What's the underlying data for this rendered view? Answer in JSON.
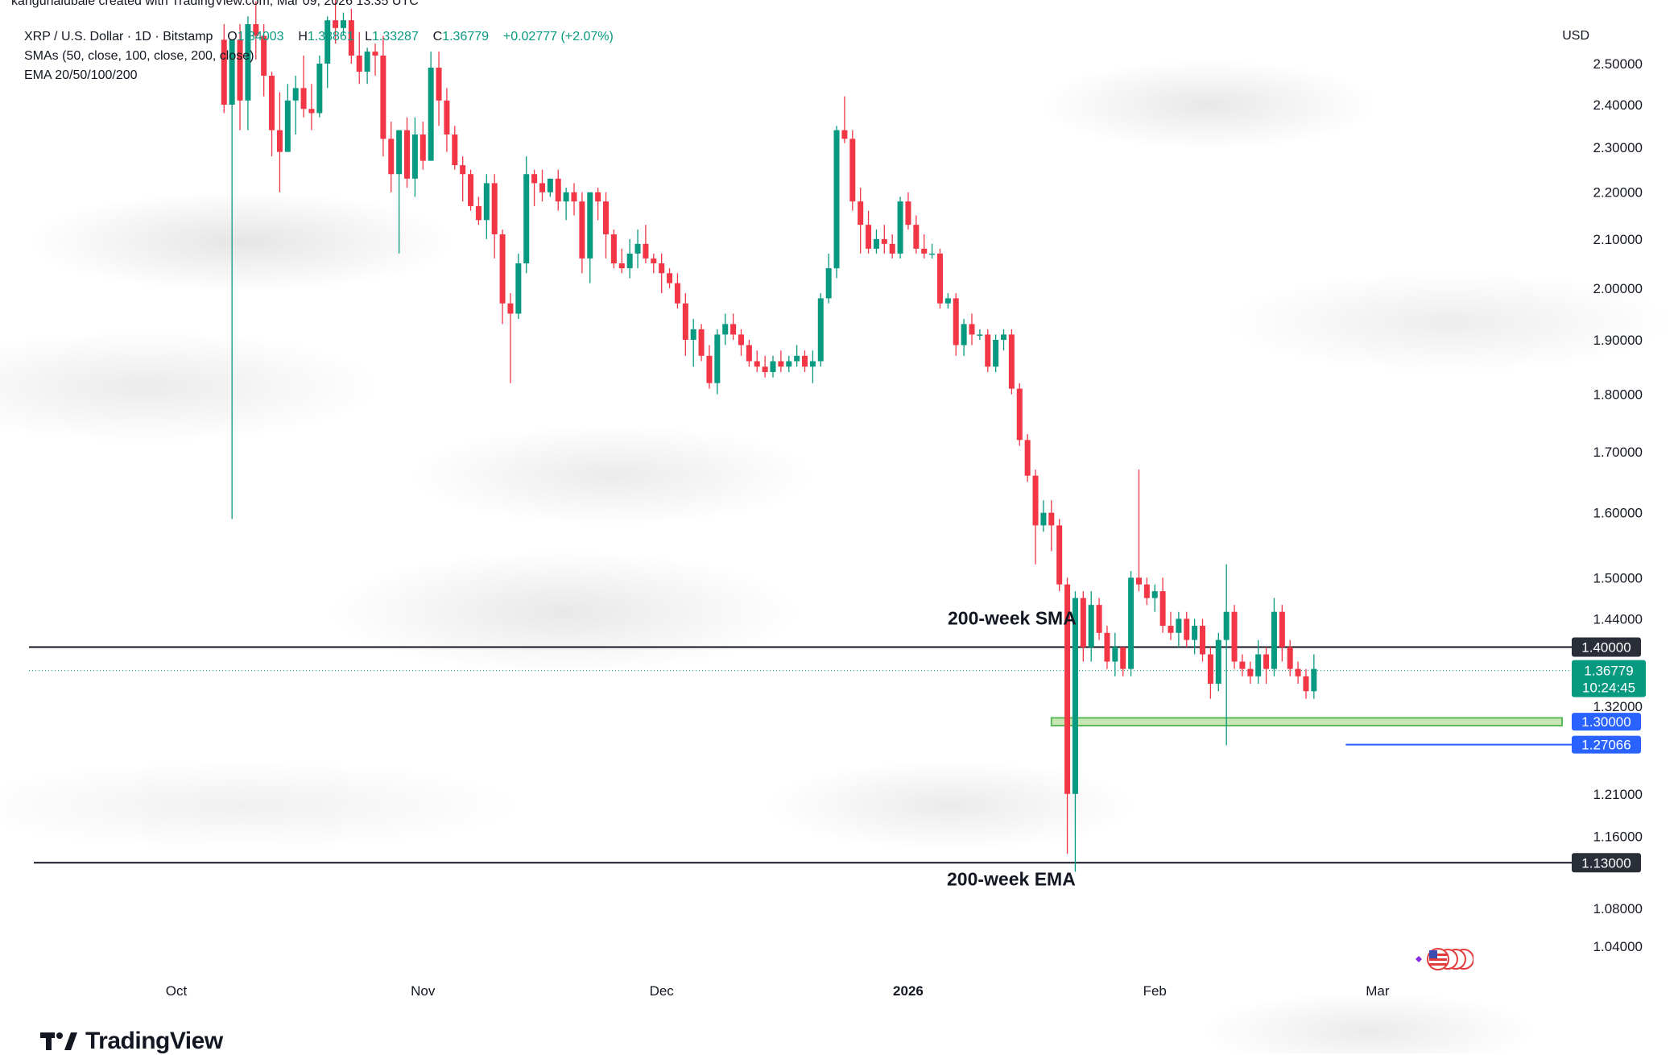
{
  "attribution": "kanguhalubale created with TradingView.com, Mar 09, 2026 13:35 UTC",
  "legend": {
    "symbol": "XRP / U.S. Dollar · 1D · Bitstamp",
    "o_label": "O",
    "o_value": "1.34003",
    "h_label": "H",
    "h_value": "1.38861",
    "l_label": "L",
    "l_value": "1.33287",
    "c_label": "C",
    "c_value": "1.36779",
    "change": "+0.02777 (+2.07%)",
    "sma": "SMAs (50, close, 100, close, 200, close)",
    "ema": "EMA 20/50/100/200"
  },
  "currency": "USD",
  "logo_text": "TradingView",
  "colors": {
    "up": "#089981",
    "down": "#f23645",
    "level_line": "#131722",
    "blue_tag": "#2962ff",
    "zone_fill": "#c8e6b4",
    "zone_border": "#5cb85c",
    "dark_tag": "#2a2e39",
    "green_tag": "#089981"
  },
  "annotations": {
    "sma_text": "200-week SMA",
    "ema_text": "200-week EMA"
  },
  "chart_data": {
    "type": "candlestick",
    "title": "XRP / U.S. Dollar · 1D · Bitstamp",
    "ylabel": "USD",
    "y_scale": "log",
    "ylim": [
      1.02,
      2.55
    ],
    "y_ticks": [
      "2.50000",
      "2.40000",
      "2.30000",
      "2.20000",
      "2.10000",
      "2.00000",
      "1.90000",
      "1.80000",
      "1.70000",
      "1.60000",
      "1.50000",
      "1.44000",
      "1.32000",
      "1.21000",
      "1.16000",
      "1.08000",
      "1.04000"
    ],
    "x_labels": [
      {
        "label": "Oct",
        "date": "2025-10-01"
      },
      {
        "label": "Nov",
        "date": "2025-11-01"
      },
      {
        "label": "Dec",
        "date": "2025-12-01"
      },
      {
        "label": "2026",
        "date": "2026-01-01"
      },
      {
        "label": "Feb",
        "date": "2026-02-01"
      },
      {
        "label": "Mar",
        "date": "2026-03-01"
      }
    ],
    "x_range": [
      "2025-09-14",
      "2026-03-28"
    ],
    "horizontal_levels": [
      {
        "name": "200-week SMA",
        "value": 1.4,
        "tag": "1.40000"
      },
      {
        "name": "200-week EMA",
        "value": 1.13,
        "tag": "1.13000"
      }
    ],
    "support_zone": {
      "from": 1.295,
      "to": 1.305,
      "start_date": "2026-01-19",
      "tag": "1.30000"
    },
    "low_marker": {
      "value": 1.27066,
      "tag": "1.27066",
      "start_date": "2026-02-25"
    },
    "last_price": {
      "value": 1.36779,
      "tag": "1.36779",
      "countdown": "10:24:45"
    },
    "candles_start_date": "2025-10-07",
    "candles": [
      [
        2.56,
        2.6,
        2.38,
        2.4
      ],
      [
        2.4,
        2.56,
        1.59,
        2.56
      ],
      [
        2.56,
        2.6,
        2.34,
        2.41
      ],
      [
        2.41,
        2.62,
        2.34,
        2.6
      ],
      [
        2.6,
        2.66,
        2.51,
        2.57
      ],
      [
        2.57,
        2.6,
        2.42,
        2.47
      ],
      [
        2.47,
        2.48,
        2.28,
        2.34
      ],
      [
        2.34,
        2.43,
        2.2,
        2.29
      ],
      [
        2.29,
        2.45,
        2.29,
        2.41
      ],
      [
        2.41,
        2.47,
        2.33,
        2.44
      ],
      [
        2.44,
        2.52,
        2.37,
        2.39
      ],
      [
        2.39,
        2.45,
        2.34,
        2.38
      ],
      [
        2.38,
        2.52,
        2.37,
        2.5
      ],
      [
        2.5,
        2.62,
        2.44,
        2.61
      ],
      [
        2.61,
        2.68,
        2.55,
        2.59
      ],
      [
        2.59,
        2.63,
        2.57,
        2.61
      ],
      [
        2.61,
        2.64,
        2.5,
        2.52
      ],
      [
        2.52,
        2.58,
        2.45,
        2.48
      ],
      [
        2.48,
        2.54,
        2.45,
        2.53
      ],
      [
        2.53,
        2.55,
        2.47,
        2.52
      ],
      [
        2.52,
        2.57,
        2.28,
        2.32
      ],
      [
        2.32,
        2.36,
        2.2,
        2.24
      ],
      [
        2.24,
        2.34,
        2.07,
        2.34
      ],
      [
        2.34,
        2.37,
        2.21,
        2.23
      ],
      [
        2.23,
        2.37,
        2.19,
        2.33
      ],
      [
        2.33,
        2.36,
        2.25,
        2.27
      ],
      [
        2.27,
        2.53,
        2.27,
        2.49
      ],
      [
        2.49,
        2.53,
        2.35,
        2.41
      ],
      [
        2.41,
        2.44,
        2.29,
        2.33
      ],
      [
        2.33,
        2.35,
        2.25,
        2.26
      ],
      [
        2.26,
        2.28,
        2.18,
        2.24
      ],
      [
        2.24,
        2.25,
        2.16,
        2.17
      ],
      [
        2.17,
        2.19,
        2.13,
        2.14
      ],
      [
        2.14,
        2.24,
        2.1,
        2.22
      ],
      [
        2.22,
        2.24,
        2.06,
        2.11
      ],
      [
        2.11,
        2.12,
        1.93,
        1.97
      ],
      [
        1.97,
        1.99,
        1.82,
        1.95
      ],
      [
        1.95,
        2.07,
        1.94,
        2.05
      ],
      [
        2.05,
        2.28,
        2.03,
        2.24
      ],
      [
        2.24,
        2.25,
        2.17,
        2.22
      ],
      [
        2.22,
        2.25,
        2.18,
        2.2
      ],
      [
        2.2,
        2.23,
        2.19,
        2.23
      ],
      [
        2.23,
        2.25,
        2.16,
        2.18
      ],
      [
        2.18,
        2.21,
        2.14,
        2.2
      ],
      [
        2.2,
        2.22,
        2.15,
        2.18
      ],
      [
        2.18,
        2.2,
        2.03,
        2.06
      ],
      [
        2.06,
        2.2,
        2.01,
        2.2
      ],
      [
        2.2,
        2.21,
        2.14,
        2.18
      ],
      [
        2.18,
        2.2,
        2.06,
        2.11
      ],
      [
        2.11,
        2.12,
        2.04,
        2.05
      ],
      [
        2.05,
        2.08,
        2.03,
        2.04
      ],
      [
        2.04,
        2.1,
        2.02,
        2.07
      ],
      [
        2.07,
        2.12,
        2.04,
        2.09
      ],
      [
        2.09,
        2.13,
        2.05,
        2.06
      ],
      [
        2.06,
        2.07,
        2.03,
        2.05
      ],
      [
        2.05,
        2.07,
        1.99,
        2.03
      ],
      [
        2.03,
        2.04,
        2.0,
        2.01
      ],
      [
        2.01,
        2.03,
        1.96,
        1.97
      ],
      [
        1.97,
        1.99,
        1.87,
        1.9
      ],
      [
        1.9,
        1.94,
        1.85,
        1.92
      ],
      [
        1.92,
        1.93,
        1.86,
        1.87
      ],
      [
        1.87,
        1.89,
        1.81,
        1.82
      ],
      [
        1.82,
        1.92,
        1.8,
        1.91
      ],
      [
        1.91,
        1.95,
        1.89,
        1.93
      ],
      [
        1.93,
        1.95,
        1.9,
        1.91
      ],
      [
        1.91,
        1.92,
        1.87,
        1.89
      ],
      [
        1.89,
        1.9,
        1.85,
        1.86
      ],
      [
        1.86,
        1.88,
        1.84,
        1.85
      ],
      [
        1.85,
        1.87,
        1.83,
        1.84
      ],
      [
        1.84,
        1.87,
        1.83,
        1.86
      ],
      [
        1.86,
        1.88,
        1.84,
        1.85
      ],
      [
        1.85,
        1.87,
        1.84,
        1.86
      ],
      [
        1.86,
        1.89,
        1.85,
        1.87
      ],
      [
        1.87,
        1.88,
        1.84,
        1.85
      ],
      [
        1.85,
        1.88,
        1.82,
        1.86
      ],
      [
        1.86,
        1.99,
        1.85,
        1.98
      ],
      [
        1.98,
        2.07,
        1.97,
        2.04
      ],
      [
        2.04,
        2.35,
        2.02,
        2.34
      ],
      [
        2.34,
        2.42,
        2.31,
        2.32
      ],
      [
        2.32,
        2.34,
        2.16,
        2.18
      ],
      [
        2.18,
        2.21,
        2.07,
        2.13
      ],
      [
        2.13,
        2.16,
        2.07,
        2.08
      ],
      [
        2.08,
        2.12,
        2.07,
        2.1
      ],
      [
        2.1,
        2.13,
        2.07,
        2.09
      ],
      [
        2.09,
        2.11,
        2.06,
        2.07
      ],
      [
        2.07,
        2.19,
        2.06,
        2.18
      ],
      [
        2.18,
        2.2,
        2.12,
        2.13
      ],
      [
        2.13,
        2.15,
        2.07,
        2.08
      ],
      [
        2.08,
        2.11,
        2.06,
        2.07
      ],
      [
        2.07,
        2.09,
        2.06,
        2.07
      ],
      [
        2.07,
        2.08,
        1.96,
        1.97
      ],
      [
        1.97,
        1.99,
        1.96,
        1.98
      ],
      [
        1.98,
        1.99,
        1.87,
        1.89
      ],
      [
        1.89,
        1.94,
        1.87,
        1.93
      ],
      [
        1.93,
        1.95,
        1.89,
        1.91
      ],
      [
        1.91,
        1.92,
        1.9,
        1.91
      ],
      [
        1.91,
        1.92,
        1.84,
        1.85
      ],
      [
        1.85,
        1.91,
        1.84,
        1.9
      ],
      [
        1.9,
        1.92,
        1.88,
        1.91
      ],
      [
        1.91,
        1.92,
        1.8,
        1.81
      ],
      [
        1.81,
        1.82,
        1.71,
        1.72
      ],
      [
        1.72,
        1.73,
        1.65,
        1.66
      ],
      [
        1.66,
        1.67,
        1.52,
        1.58
      ],
      [
        1.58,
        1.62,
        1.57,
        1.6
      ],
      [
        1.6,
        1.62,
        1.54,
        1.58
      ],
      [
        1.58,
        1.59,
        1.48,
        1.49
      ],
      [
        1.49,
        1.5,
        1.14,
        1.21
      ],
      [
        1.21,
        1.48,
        1.12,
        1.47
      ],
      [
        1.47,
        1.48,
        1.38,
        1.4
      ],
      [
        1.4,
        1.48,
        1.38,
        1.46
      ],
      [
        1.46,
        1.47,
        1.41,
        1.42
      ],
      [
        1.42,
        1.43,
        1.37,
        1.38
      ],
      [
        1.38,
        1.42,
        1.36,
        1.4
      ],
      [
        1.4,
        1.4,
        1.36,
        1.37
      ],
      [
        1.37,
        1.51,
        1.36,
        1.5
      ],
      [
        1.5,
        1.67,
        1.48,
        1.49
      ],
      [
        1.49,
        1.5,
        1.46,
        1.47
      ],
      [
        1.47,
        1.49,
        1.45,
        1.48
      ],
      [
        1.48,
        1.5,
        1.42,
        1.43
      ],
      [
        1.43,
        1.45,
        1.41,
        1.42
      ],
      [
        1.42,
        1.45,
        1.4,
        1.44
      ],
      [
        1.44,
        1.45,
        1.4,
        1.41
      ],
      [
        1.41,
        1.44,
        1.39,
        1.43
      ],
      [
        1.43,
        1.44,
        1.38,
        1.39
      ],
      [
        1.39,
        1.4,
        1.33,
        1.35
      ],
      [
        1.35,
        1.42,
        1.34,
        1.41
      ],
      [
        1.41,
        1.52,
        1.27,
        1.45
      ],
      [
        1.45,
        1.46,
        1.37,
        1.38
      ],
      [
        1.38,
        1.39,
        1.36,
        1.37
      ],
      [
        1.37,
        1.38,
        1.35,
        1.36
      ],
      [
        1.36,
        1.41,
        1.35,
        1.39
      ],
      [
        1.39,
        1.4,
        1.35,
        1.37
      ],
      [
        1.37,
        1.47,
        1.36,
        1.45
      ],
      [
        1.45,
        1.46,
        1.38,
        1.4
      ],
      [
        1.4,
        1.41,
        1.36,
        1.37
      ],
      [
        1.37,
        1.38,
        1.35,
        1.36
      ],
      [
        1.36,
        1.37,
        1.33,
        1.34
      ],
      [
        1.34,
        1.39,
        1.33,
        1.37
      ]
    ]
  }
}
